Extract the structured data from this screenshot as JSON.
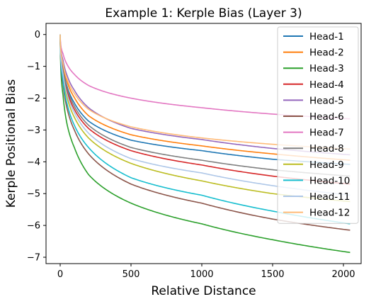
{
  "chart_data": {
    "type": "line",
    "title": "Example 1: Kerple Bias (Layer 3)",
    "xlabel": "Relative Distance",
    "ylabel": "Kerple Positional Bias",
    "xlim": [
      -100,
      2125
    ],
    "ylim": [
      -7.2,
      0.35
    ],
    "xticks": [
      0,
      500,
      1000,
      1500,
      2000
    ],
    "yticks": [
      0,
      -1,
      -2,
      -3,
      -4,
      -5,
      -6,
      -7
    ],
    "grid": false,
    "legend_position": "top-right",
    "x_max": 2047,
    "series": [
      {
        "name": "Head-1",
        "color": "#1f77b4",
        "values": {
          "0": 0,
          "20": -1.05,
          "50": -1.65,
          "100": -2.15,
          "200": -2.72,
          "500": -3.32,
          "1000": -3.65,
          "1500": -3.92,
          "2047": -4.08
        }
      },
      {
        "name": "Head-2",
        "color": "#ff7f0e",
        "values": {
          "0": 0,
          "20": -0.95,
          "50": -1.5,
          "100": -1.98,
          "200": -2.55,
          "500": -3.15,
          "1000": -3.5,
          "1500": -3.75,
          "2047": -3.95
        }
      },
      {
        "name": "Head-3",
        "color": "#2ca02c",
        "values": {
          "0": 0,
          "20": -1.9,
          "50": -2.85,
          "100": -3.55,
          "200": -4.4,
          "500": -5.3,
          "1000": -5.95,
          "1500": -6.45,
          "2047": -6.85
        }
      },
      {
        "name": "Head-4",
        "color": "#d62728",
        "values": {
          "0": 0,
          "20": -1.15,
          "50": -1.8,
          "100": -2.35,
          "200": -2.95,
          "500": -3.65,
          "1000": -4.1,
          "1500": -4.45,
          "2047": -4.7
        }
      },
      {
        "name": "Head-5",
        "color": "#9467bd",
        "values": {
          "0": 0,
          "20": -0.8,
          "50": -1.3,
          "100": -1.75,
          "200": -2.3,
          "500": -2.95,
          "1000": -3.3,
          "1500": -3.58,
          "2047": -3.78
        }
      },
      {
        "name": "Head-6",
        "color": "#8c564b",
        "values": {
          "0": 0,
          "20": -1.55,
          "50": -2.35,
          "100": -3.0,
          "200": -3.75,
          "500": -4.7,
          "1000": -5.3,
          "1500": -5.8,
          "2047": -6.15
        }
      },
      {
        "name": "Head-7",
        "color": "#e377c2",
        "values": {
          "0": 0,
          "20": -0.6,
          "50": -0.95,
          "100": -1.25,
          "200": -1.6,
          "500": -2.0,
          "1000": -2.3,
          "1500": -2.5,
          "2047": -2.65
        }
      },
      {
        "name": "Head-8",
        "color": "#7f7f7f",
        "values": {
          "0": 0,
          "20": -1.1,
          "50": -1.7,
          "100": -2.25,
          "200": -2.85,
          "500": -3.55,
          "1000": -3.95,
          "1500": -4.25,
          "2047": -4.45
        }
      },
      {
        "name": "Head-9",
        "color": "#bcbd22",
        "values": {
          "0": 0,
          "20": -1.3,
          "50": -2.0,
          "100": -2.6,
          "200": -3.25,
          "500": -4.05,
          "1000": -4.6,
          "1500": -5.0,
          "2047": -5.25
        }
      },
      {
        "name": "Head-10",
        "color": "#17becf",
        "values": {
          "0": 0,
          "20": -1.45,
          "50": -2.2,
          "100": -2.85,
          "200": -3.55,
          "500": -4.5,
          "1000": -5.05,
          "1500": -5.55,
          "2047": -5.95
        }
      },
      {
        "name": "Head-11",
        "color": "#aec7e8",
        "values": {
          "0": 0,
          "20": -1.25,
          "50": -1.9,
          "100": -2.45,
          "200": -3.1,
          "500": -3.9,
          "1000": -4.35,
          "1500": -4.75,
          "2047": -5.05
        }
      },
      {
        "name": "Head-12",
        "color": "#ffbb78",
        "values": {
          "0": 0,
          "20": -0.9,
          "50": -1.42,
          "100": -1.85,
          "200": -2.35,
          "500": -2.9,
          "1000": -3.25,
          "1500": -3.45,
          "2047": -3.6
        }
      }
    ]
  }
}
